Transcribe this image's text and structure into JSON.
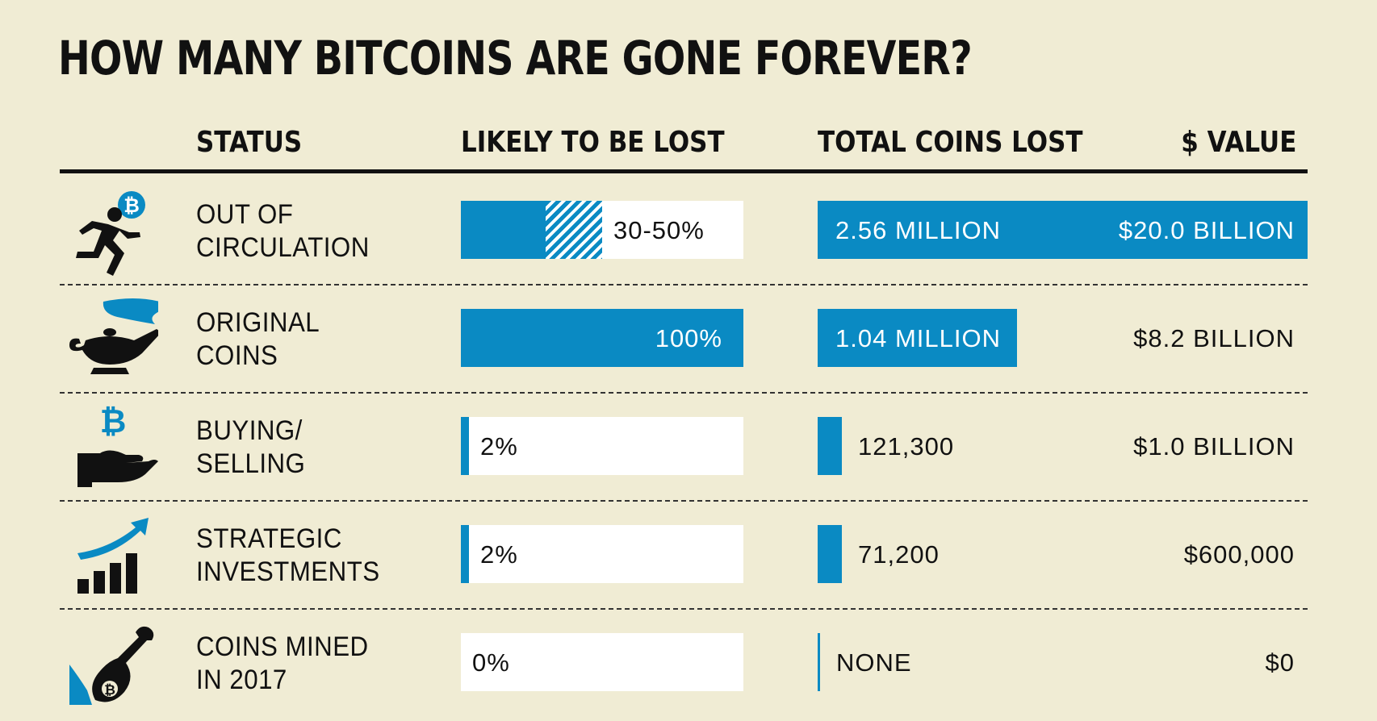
{
  "title": "HOW MANY BITCOINS ARE GONE FOREVER?",
  "headers": {
    "status": "STATUS",
    "likely": "LIKELY TO BE LOST",
    "total": "TOTAL COINS LOST",
    "value": "$ VALUE"
  },
  "colors": {
    "accent": "#0a8ac3",
    "background": "#f0ecd4",
    "ink": "#111111",
    "box": "#ffffff"
  },
  "rows": [
    {
      "status": "OUT OF\nCIRCULATION",
      "icon": "running-man-bitcoin-icon",
      "likely_label": "30-50%",
      "likely_min_pct": 30,
      "likely_max_pct": 50,
      "total_label": "2.56 MILLION",
      "total_coins": 2560000,
      "value_label": "$20.0 BILLION"
    },
    {
      "status": "ORIGINAL\nCOINS",
      "icon": "genie-lamp-icon",
      "likely_label": "100%",
      "likely_min_pct": 100,
      "likely_max_pct": 100,
      "total_label": "1.04 MILLION",
      "total_coins": 1040000,
      "value_label": "$8.2 BILLION"
    },
    {
      "status": "BUYING/\nSELLING",
      "icon": "hand-bitcoin-icon",
      "likely_label": "2%",
      "likely_min_pct": 2,
      "likely_max_pct": 2,
      "total_label": "121,300",
      "total_coins": 121300,
      "value_label": "$1.0 BILLION"
    },
    {
      "status": "STRATEGIC\nINVESTMENTS",
      "icon": "growth-chart-icon",
      "likely_label": "2%",
      "likely_min_pct": 2,
      "likely_max_pct": 2,
      "total_label": "71,200",
      "total_coins": 71200,
      "value_label": "$600,000"
    },
    {
      "status": "COINS MINED\nIN 2017",
      "icon": "shovel-bitcoin-icon",
      "likely_label": "0%",
      "likely_min_pct": 0,
      "likely_max_pct": 0,
      "total_label": "NONE",
      "total_coins": 0,
      "value_label": "$0"
    }
  ],
  "chart_data": {
    "type": "table",
    "title": "HOW MANY BITCOINS ARE GONE FOREVER?",
    "columns": [
      "STATUS",
      "LIKELY TO BE LOST",
      "TOTAL COINS LOST",
      "$ VALUE"
    ],
    "categories": [
      "OUT OF CIRCULATION",
      "ORIGINAL COINS",
      "BUYING/SELLING",
      "STRATEGIC INVESTMENTS",
      "COINS MINED IN 2017"
    ],
    "series": [
      {
        "name": "LIKELY TO BE LOST",
        "values": [
          "30-50%",
          "100%",
          "2%",
          "2%",
          "0%"
        ]
      },
      {
        "name": "TOTAL COINS LOST",
        "values": [
          2560000,
          1040000,
          121300,
          71200,
          0
        ]
      },
      {
        "name": "$ VALUE",
        "values": [
          "$20.0 BILLION",
          "$8.2 BILLION",
          "$1.0 BILLION",
          "$600,000",
          "$0"
        ]
      }
    ]
  }
}
